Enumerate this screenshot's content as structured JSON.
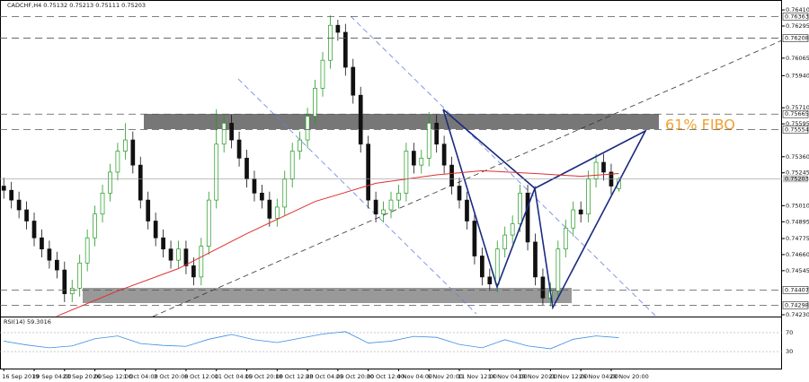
{
  "chart_data": {
    "type": "candlestick",
    "title": "CADCHF,H4 0.75132 0.75213 0.75111 0.75203",
    "open": [
      0.7515,
      0.7512,
      0.7505,
      0.7498,
      0.749,
      0.7478,
      0.747,
      0.7462,
      0.7455,
      0.7438,
      0.7442,
      0.746,
      0.7478,
      0.7495,
      0.751,
      0.7525,
      0.754,
      0.7548,
      0.753,
      0.7505,
      0.749,
      0.7478,
      0.747,
      0.7462,
      0.747,
      0.7458,
      0.745,
      0.7472,
      0.7505,
      0.7545,
      0.756,
      0.7548,
      0.7535,
      0.752,
      0.751,
      0.7505,
      0.7492,
      0.75,
      0.752,
      0.754,
      0.7548,
      0.7565,
      0.7585,
      0.7605,
      0.763,
      0.7625,
      0.76,
      0.758,
      0.7545,
      0.7505,
      0.7495,
      0.7498,
      0.7505,
      0.751,
      0.754,
      0.753,
      0.7535,
      0.756,
      0.7545,
      0.753,
      0.7515,
      0.7505,
      0.749,
      0.7465,
      0.745,
      0.7445,
      0.747,
      0.748,
      0.7488,
      0.751,
      0.7475,
      0.745,
      0.7435,
      0.744,
      0.747,
      0.7485,
      0.7498,
      0.7495,
      0.752,
      0.7532,
      0.7525,
      0.75132
    ],
    "high": [
      0.7521,
      0.7518,
      0.7511,
      0.7504,
      0.7496,
      0.7484,
      0.7476,
      0.7468,
      0.7461,
      0.7448,
      0.7466,
      0.7484,
      0.7501,
      0.7516,
      0.7531,
      0.7546,
      0.756,
      0.7554,
      0.7536,
      0.7511,
      0.7496,
      0.7484,
      0.7476,
      0.7476,
      0.7476,
      0.7464,
      0.7478,
      0.7511,
      0.757,
      0.7566,
      0.7566,
      0.7554,
      0.7541,
      0.7526,
      0.7516,
      0.7511,
      0.7506,
      0.7526,
      0.7546,
      0.7554,
      0.7571,
      0.7591,
      0.7611,
      0.7637,
      0.7634,
      0.7631,
      0.7606,
      0.7586,
      0.7551,
      0.7511,
      0.7504,
      0.7511,
      0.7516,
      0.7546,
      0.7546,
      0.7541,
      0.7568,
      0.7566,
      0.7551,
      0.7536,
      0.7521,
      0.7511,
      0.7496,
      0.7471,
      0.7456,
      0.7476,
      0.7486,
      0.7494,
      0.7516,
      0.7516,
      0.7481,
      0.7456,
      0.7446,
      0.7476,
      0.7491,
      0.7504,
      0.7504,
      0.7526,
      0.7538,
      0.7538,
      0.7531,
      0.75213
    ],
    "low": [
      0.7506,
      0.7499,
      0.7492,
      0.7484,
      0.7472,
      0.7464,
      0.7456,
      0.7449,
      0.7432,
      0.7432,
      0.7436,
      0.7454,
      0.7472,
      0.7489,
      0.7504,
      0.7519,
      0.7534,
      0.7524,
      0.7499,
      0.7484,
      0.7472,
      0.7464,
      0.7456,
      0.7456,
      0.7452,
      0.7444,
      0.7444,
      0.7466,
      0.7499,
      0.7539,
      0.7542,
      0.7529,
      0.7514,
      0.7504,
      0.7499,
      0.7486,
      0.7486,
      0.7494,
      0.7514,
      0.7534,
      0.7542,
      0.7559,
      0.7579,
      0.7599,
      0.7619,
      0.7594,
      0.7574,
      0.7539,
      0.7499,
      0.7489,
      0.7489,
      0.7492,
      0.7499,
      0.7504,
      0.7524,
      0.7524,
      0.7529,
      0.7539,
      0.7524,
      0.7509,
      0.7499,
      0.7484,
      0.7459,
      0.7444,
      0.744,
      0.7439,
      0.7464,
      0.7474,
      0.7482,
      0.7469,
      0.7444,
      0.743,
      0.7429,
      0.7434,
      0.7464,
      0.7479,
      0.7489,
      0.7489,
      0.7514,
      0.7519,
      0.7509,
      0.75111
    ],
    "close": [
      0.7512,
      0.7505,
      0.7498,
      0.749,
      0.7478,
      0.747,
      0.7462,
      0.7455,
      0.7438,
      0.7442,
      0.746,
      0.7478,
      0.7495,
      0.751,
      0.7525,
      0.754,
      0.7548,
      0.753,
      0.7505,
      0.749,
      0.7478,
      0.747,
      0.7462,
      0.747,
      0.7458,
      0.745,
      0.7472,
      0.7505,
      0.7545,
      0.756,
      0.7548,
      0.7535,
      0.752,
      0.751,
      0.7505,
      0.7492,
      0.75,
      0.752,
      0.754,
      0.7548,
      0.7565,
      0.7585,
      0.7605,
      0.763,
      0.7625,
      0.76,
      0.758,
      0.7545,
      0.7505,
      0.7495,
      0.7498,
      0.7505,
      0.751,
      0.754,
      0.753,
      0.7535,
      0.756,
      0.7545,
      0.753,
      0.7515,
      0.7505,
      0.749,
      0.7465,
      0.745,
      0.7445,
      0.747,
      0.748,
      0.7488,
      0.751,
      0.7475,
      0.745,
      0.7435,
      0.744,
      0.747,
      0.7485,
      0.7498,
      0.7495,
      0.752,
      0.7532,
      0.7525,
      0.7515,
      0.75203
    ],
    "up_color": "#1f9a1f",
    "down_color": "#111111",
    "xlim": [
      -0.5,
      102.5
    ],
    "ylim": [
      0.74217,
      0.76481
    ],
    "yticks": [
      {
        "value": 0.7641,
        "label": "0.76410"
      },
      {
        "value": 0.76295,
        "label": "0.76295"
      },
      {
        "value": 0.76065,
        "label": "0.76065"
      },
      {
        "value": 0.7594,
        "label": "0.75940"
      },
      {
        "value": 0.7571,
        "label": "0.75710"
      },
      {
        "value": 0.75595,
        "label": "0.75595"
      },
      {
        "value": 0.7536,
        "label": "0.75360"
      },
      {
        "value": 0.75245,
        "label": "0.75245"
      },
      {
        "value": 0.7501,
        "label": "0.75010"
      },
      {
        "value": 0.74895,
        "label": "0.74895"
      },
      {
        "value": 0.74775,
        "label": "0.74775"
      },
      {
        "value": 0.7466,
        "label": "0.74660"
      },
      {
        "value": 0.74545,
        "label": "0.74545"
      },
      {
        "value": 0.7423,
        "label": "0.74230"
      }
    ],
    "xticks": [
      {
        "value": 0,
        "label": "16 Sep 2019"
      },
      {
        "value": 4,
        "label": "19 Sep 04:00"
      },
      {
        "value": 8,
        "label": "23 Sep 20:00"
      },
      {
        "value": 12,
        "label": "26 Sep 12:00"
      },
      {
        "value": 16,
        "label": "1 Oct 04:00"
      },
      {
        "value": 20,
        "label": "3 Oct 20:00"
      },
      {
        "value": 24,
        "label": "8 Oct 12:00"
      },
      {
        "value": 28,
        "label": "11 Oct 04:00"
      },
      {
        "value": 32,
        "label": "15 Oct 20:00"
      },
      {
        "value": 36,
        "label": "18 Oct 12:00"
      },
      {
        "value": 40,
        "label": "23 Oct 04:00"
      },
      {
        "value": 44,
        "label": "25 Oct 20:00"
      },
      {
        "value": 48,
        "label": "30 Oct 12:00"
      },
      {
        "value": 52,
        "label": "4 Nov 04:00"
      },
      {
        "value": 56,
        "label": "6 Nov 20:00"
      },
      {
        "value": 60,
        "label": "11 Nov 12:00"
      },
      {
        "value": 64,
        "label": "14 Nov 04:00"
      },
      {
        "value": 68,
        "label": "18 Nov 20:00"
      },
      {
        "value": 72,
        "label": "21 Nov 12:00"
      },
      {
        "value": 76,
        "label": "26 Nov 04:00"
      },
      {
        "value": 80,
        "label": "28 Nov 20:00"
      }
    ],
    "levels": [
      0.76363,
      0.76208,
      0.75665,
      0.75554,
      0.74407,
      0.74298
    ],
    "current_price": 0.75203,
    "ma": {
      "color": "#e03030",
      "x": [
        7,
        15,
        23,
        32,
        41,
        49,
        57,
        63,
        70,
        76,
        81
      ],
      "values": [
        0.7422,
        0.744,
        0.7456,
        0.7481,
        0.7504,
        0.7517,
        0.7523,
        0.7526,
        0.7524,
        0.7522,
        0.7524
      ]
    },
    "rsi": {
      "title": "RSI(14) 59.3016",
      "color": "#3a8ee6",
      "ylim": [
        0,
        100
      ],
      "yticks": [
        70,
        30
      ],
      "x": [
        0,
        3,
        6,
        9,
        12,
        15,
        18,
        21,
        24,
        27,
        30,
        33,
        36,
        39,
        42,
        45,
        48,
        51,
        54,
        57,
        60,
        63,
        66,
        69,
        72,
        75,
        78,
        81
      ],
      "values": [
        52,
        44,
        38,
        42,
        57,
        63,
        47,
        43,
        41,
        56,
        66,
        55,
        49,
        58,
        67,
        72,
        48,
        52,
        62,
        60,
        45,
        38,
        55,
        42,
        36,
        56,
        63,
        59.3016
      ]
    },
    "annotation": "61% FIBO"
  }
}
